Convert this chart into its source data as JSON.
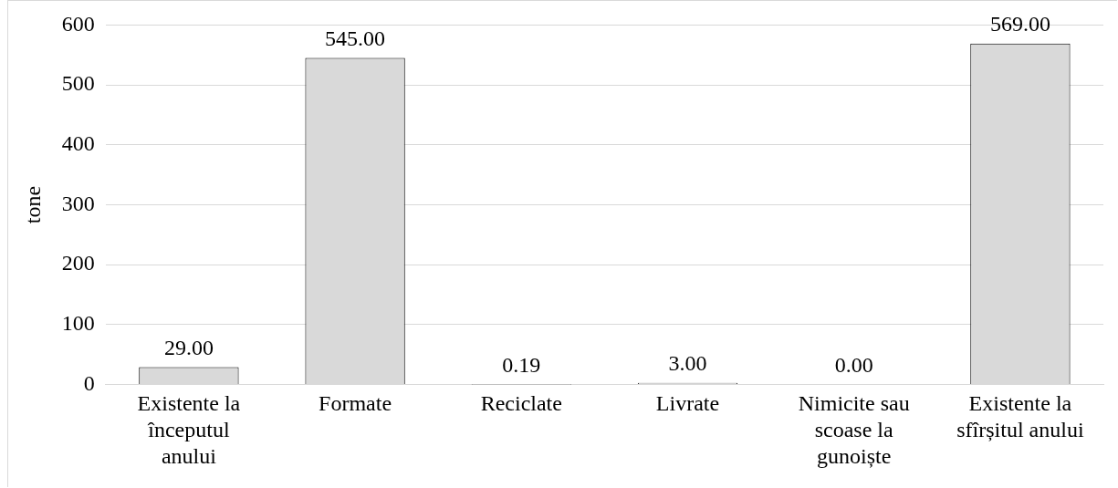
{
  "chart_data": {
    "type": "bar",
    "ylabel": "tone",
    "categories": [
      "Existente la începutul anului",
      "Formate",
      "Reciclate",
      "Livrate",
      "Nimicite sau scoase la gunoiște",
      "Existente la sfîrșitul anului"
    ],
    "values": [
      29,
      545,
      0.19,
      3,
      0,
      569
    ],
    "value_labels": [
      "29.00",
      "545.00",
      "0.19",
      "3.00",
      "0.00",
      "569.00"
    ],
    "color": "#d9d9d9",
    "ylim": [
      0,
      600
    ],
    "yticks": [
      0,
      100,
      200,
      300,
      400,
      500,
      600
    ],
    "grid": "y",
    "legend": false
  }
}
